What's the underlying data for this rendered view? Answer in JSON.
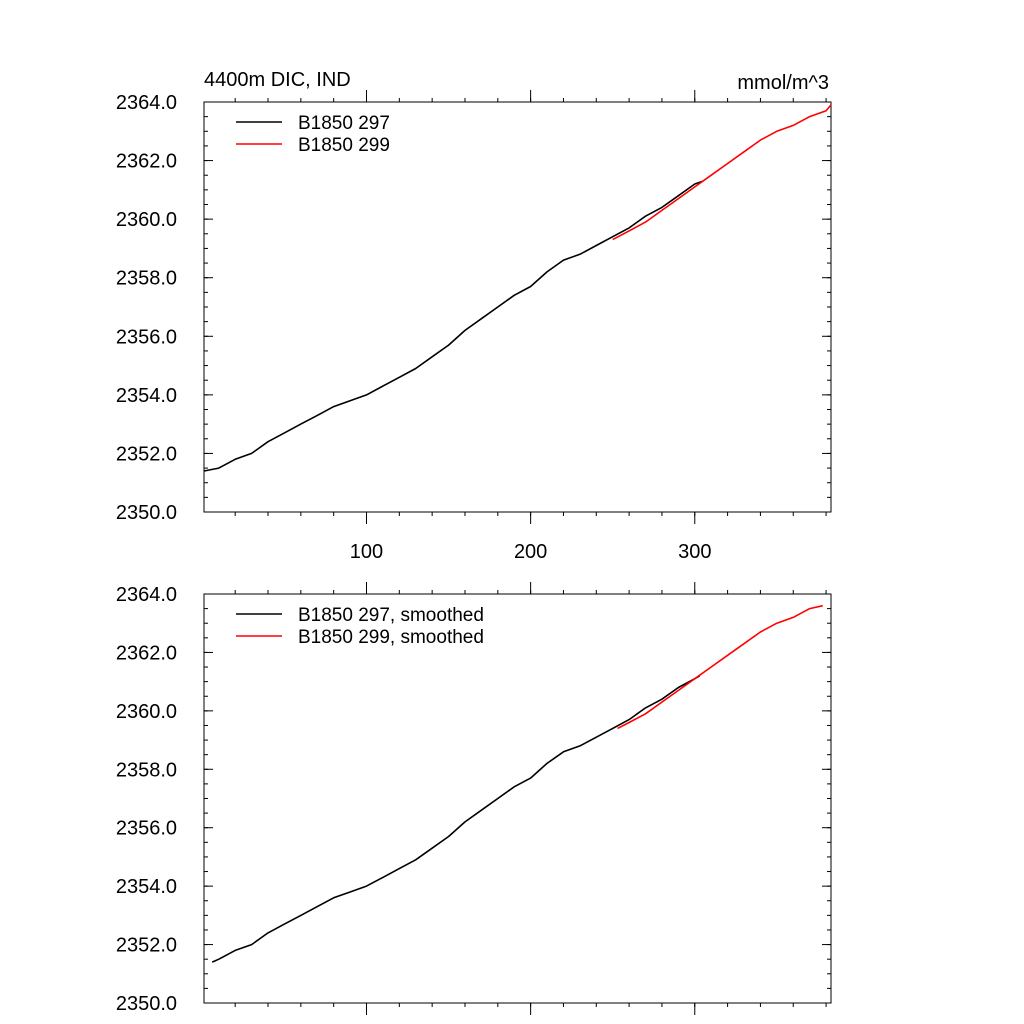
{
  "chart_data": [
    {
      "type": "line",
      "title_left": "4400m DIC, IND",
      "title_right": "mmol/m^3",
      "xlim": [
        1,
        383
      ],
      "ylim": [
        2350,
        2364
      ],
      "xticks": [
        100,
        200,
        300
      ],
      "xtick_labels": [
        "100",
        "200",
        "300"
      ],
      "yticks": [
        2350,
        2352,
        2354,
        2356,
        2358,
        2360,
        2362,
        2364
      ],
      "ytick_labels": [
        "2350.0",
        "2352.0",
        "2354.0",
        "2356.0",
        "2358.0",
        "2360.0",
        "2362.0",
        "2364.0"
      ],
      "legend_position": "top-left",
      "series": [
        {
          "name": "B1850 297",
          "color": "#000000",
          "x": [
            1,
            10,
            20,
            30,
            40,
            50,
            60,
            70,
            80,
            90,
            100,
            110,
            120,
            130,
            140,
            150,
            160,
            170,
            180,
            190,
            200,
            210,
            220,
            230,
            240,
            250,
            260,
            270,
            280,
            290,
            300,
            305
          ],
          "y": [
            2351.4,
            2351.5,
            2351.8,
            2352.0,
            2352.4,
            2352.7,
            2353.0,
            2353.3,
            2353.6,
            2353.8,
            2354.0,
            2354.3,
            2354.6,
            2354.9,
            2355.3,
            2355.7,
            2356.2,
            2356.6,
            2357.0,
            2357.4,
            2357.7,
            2358.2,
            2358.6,
            2358.8,
            2359.1,
            2359.4,
            2359.7,
            2360.1,
            2360.4,
            2360.8,
            2361.2,
            2361.3
          ]
        },
        {
          "name": "B1850 299",
          "color": "#ff0000",
          "x": [
            250,
            260,
            270,
            280,
            290,
            300,
            310,
            320,
            330,
            340,
            350,
            360,
            370,
            380,
            383
          ],
          "y": [
            2359.3,
            2359.6,
            2359.9,
            2360.3,
            2360.7,
            2361.1,
            2361.5,
            2361.9,
            2362.3,
            2362.7,
            2363.0,
            2363.2,
            2363.5,
            2363.7,
            2363.9
          ]
        }
      ]
    },
    {
      "type": "line",
      "xlim": [
        1,
        383
      ],
      "ylim": [
        2350,
        2364
      ],
      "xticks": [
        100,
        200,
        300
      ],
      "yticks": [
        2350,
        2352,
        2354,
        2356,
        2358,
        2360,
        2362,
        2364
      ],
      "ytick_labels": [
        "2350.0",
        "2352.0",
        "2354.0",
        "2356.0",
        "2358.0",
        "2360.0",
        "2362.0",
        "2364.0"
      ],
      "legend_position": "top-left",
      "series": [
        {
          "name": "B1850 297, smoothed",
          "color": "#000000",
          "x": [
            6,
            10,
            20,
            30,
            40,
            50,
            60,
            70,
            80,
            90,
            100,
            110,
            120,
            130,
            140,
            150,
            160,
            170,
            180,
            190,
            200,
            210,
            220,
            230,
            240,
            250,
            260,
            270,
            280,
            290,
            300,
            303
          ],
          "y": [
            2351.4,
            2351.5,
            2351.8,
            2352.0,
            2352.4,
            2352.7,
            2353.0,
            2353.3,
            2353.6,
            2353.8,
            2354.0,
            2354.3,
            2354.6,
            2354.9,
            2355.3,
            2355.7,
            2356.2,
            2356.6,
            2357.0,
            2357.4,
            2357.7,
            2358.2,
            2358.6,
            2358.8,
            2359.1,
            2359.4,
            2359.7,
            2360.1,
            2360.4,
            2360.8,
            2361.1,
            2361.2
          ]
        },
        {
          "name": "B1850 299, smoothed",
          "color": "#ff0000",
          "x": [
            253,
            260,
            270,
            280,
            290,
            300,
            310,
            320,
            330,
            340,
            350,
            360,
            370,
            378
          ],
          "y": [
            2359.4,
            2359.6,
            2359.9,
            2360.3,
            2360.7,
            2361.1,
            2361.5,
            2361.9,
            2362.3,
            2362.7,
            2363.0,
            2363.2,
            2363.5,
            2363.6
          ]
        }
      ]
    }
  ]
}
